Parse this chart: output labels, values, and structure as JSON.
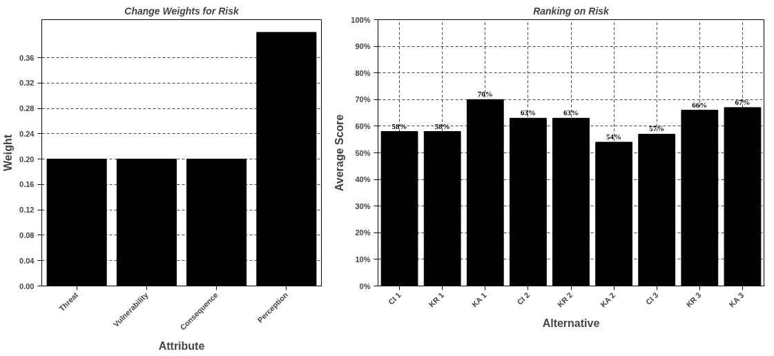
{
  "chart_data": [
    {
      "type": "bar",
      "title": "Change Weights for Risk",
      "xlabel": "Attribute",
      "ylabel": "Weight",
      "categories": [
        "Threat",
        "Vulnerability",
        "Consequence",
        "Perception"
      ],
      "values": [
        0.2,
        0.2,
        0.2,
        0.4
      ],
      "color": "#000000",
      "ylim": [
        0,
        0.42
      ],
      "yticks": [
        {
          "value": 0,
          "label": "0.00"
        },
        0.04,
        0.08,
        0.12,
        0.16,
        {
          "value": 0.2,
          "label": "0.20"
        },
        0.24,
        0.28,
        0.32,
        0.36
      ],
      "grid": "y"
    },
    {
      "type": "bar",
      "title": "Ranking on Risk",
      "xlabel": "Alternative",
      "ylabel": "Average Score",
      "categories": [
        "CI 1",
        "KR 1",
        "KA 1",
        "CI 2",
        "KR 2",
        "KA 2",
        "CI 3",
        "KR 3",
        "KA 3"
      ],
      "values": [
        58,
        58,
        70,
        63,
        63,
        54,
        57,
        66,
        67
      ],
      "color": "#000000",
      "value_labels": [
        "58%",
        "58%",
        "70%",
        "63%",
        "63%",
        "54%",
        "57%",
        "66%",
        "67%"
      ],
      "ylim": [
        0,
        100
      ],
      "yticks": [
        {
          "value": 0,
          "label": "0%"
        },
        {
          "value": 10,
          "label": "10%"
        },
        {
          "value": 20,
          "label": "20%"
        },
        {
          "value": 30,
          "label": "30%"
        },
        {
          "value": 40,
          "label": "40%"
        },
        {
          "value": 50,
          "label": "50%"
        },
        {
          "value": 60,
          "label": "60%"
        },
        {
          "value": 70,
          "label": "70%"
        },
        {
          "value": 80,
          "label": "80%"
        },
        {
          "value": 90,
          "label": "90%"
        },
        {
          "value": 100,
          "label": "100%"
        }
      ],
      "grid": true
    }
  ]
}
